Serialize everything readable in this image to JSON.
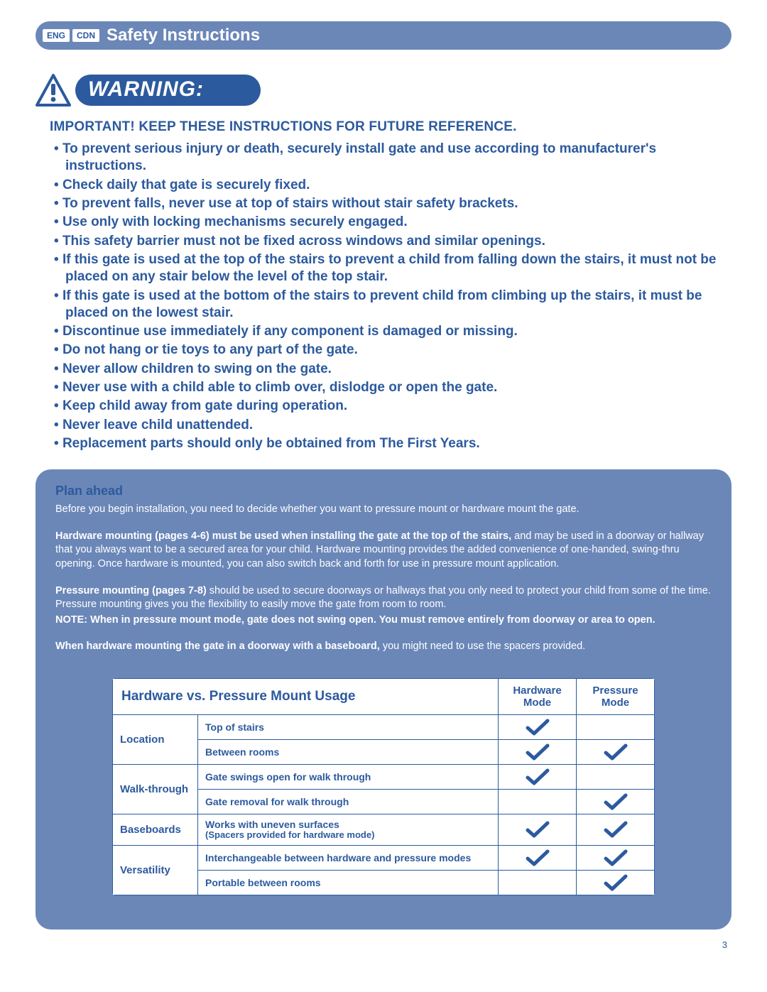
{
  "header": {
    "lang1": "ENG",
    "lang2": "CDN",
    "title": "Safety Instructions"
  },
  "warning": {
    "label": "WARNING:",
    "important": "IMPORTANT! KEEP THESE INSTRUCTIONS FOR FUTURE REFERENCE.",
    "bullets": [
      "To prevent serious injury or death, securely install gate and use according to manufacturer's instructions.",
      "Check daily that gate is securely fixed.",
      "To prevent falls, never use at top of stairs without stair safety brackets.",
      "Use only with locking mechanisms securely engaged.",
      "This safety barrier must not be fixed across windows and similar openings.",
      "If this gate is used at the top of the stairs to prevent a child from falling down the stairs, it must not be placed on any stair below the level of the top stair.",
      "If this gate is used at the bottom of the stairs to prevent child from climbing up the stairs, it must be placed on the lowest stair.",
      "Discontinue use immediately if any component is damaged or missing.",
      "Do not hang or tie toys to any part of the gate.",
      "Never allow children to swing on the gate.",
      "Never use with a child able to climb over, dislodge or open the gate.",
      "Keep child away from gate during operation.",
      "Never leave child unattended.",
      "Replacement parts should only be obtained from The First Years."
    ]
  },
  "plan": {
    "title": "Plan ahead",
    "intro": "Before you begin installation, you need to decide whether you want to pressure mount or hardware mount the gate.",
    "hw_bold": "Hardware mounting (pages 4-6) must be used when installing the gate at the top of the stairs,",
    "hw_rest": " and may be used in a doorway or hallway that you always want to be a secured area for your child. Hardware mounting provides the added convenience of one-handed, swing-thru opening. Once hardware is mounted, you can also switch back and forth for use in pressure mount application.",
    "pm_bold": "Pressure mounting (pages 7-8)",
    "pm_rest": " should be used to secure doorways or hallways that you only need to protect your child from some of the time. Pressure mounting gives you the flexibility to easily move the gate from room to room.",
    "note": "NOTE: When in pressure mount mode, gate does not swing open. You must remove entirely from doorway or area to open.",
    "base_bold": "When hardware mounting the gate in a doorway with a baseboard,",
    "base_rest": " you might need to use the spacers provided."
  },
  "table": {
    "title": "Hardware vs. Pressure Mount Usage",
    "col1": "Hardware Mode",
    "col2": "Pressure Mode",
    "categories": [
      {
        "label": "Location",
        "rows": [
          {
            "desc": "Top of stairs",
            "hw": true,
            "pm": false
          },
          {
            "desc": "Between rooms",
            "hw": true,
            "pm": true
          }
        ]
      },
      {
        "label": "Walk-through",
        "rows": [
          {
            "desc": "Gate swings open for walk through",
            "hw": true,
            "pm": false
          },
          {
            "desc": "Gate removal for walk through",
            "hw": false,
            "pm": true
          }
        ]
      },
      {
        "label": "Baseboards",
        "rows": [
          {
            "desc": "Works with uneven surfaces",
            "sub": "(Spacers provided for hardware mode)",
            "hw": true,
            "pm": true
          }
        ]
      },
      {
        "label": "Versatility",
        "rows": [
          {
            "desc": "Interchangeable between hardware and pressure modes",
            "hw": true,
            "pm": true
          },
          {
            "desc": "Portable between rooms",
            "hw": false,
            "pm": true
          }
        ]
      }
    ]
  },
  "page_number": "3",
  "colors": {
    "primary": "#2c5a9e",
    "box": "#6b87b8",
    "white": "#ffffff"
  }
}
